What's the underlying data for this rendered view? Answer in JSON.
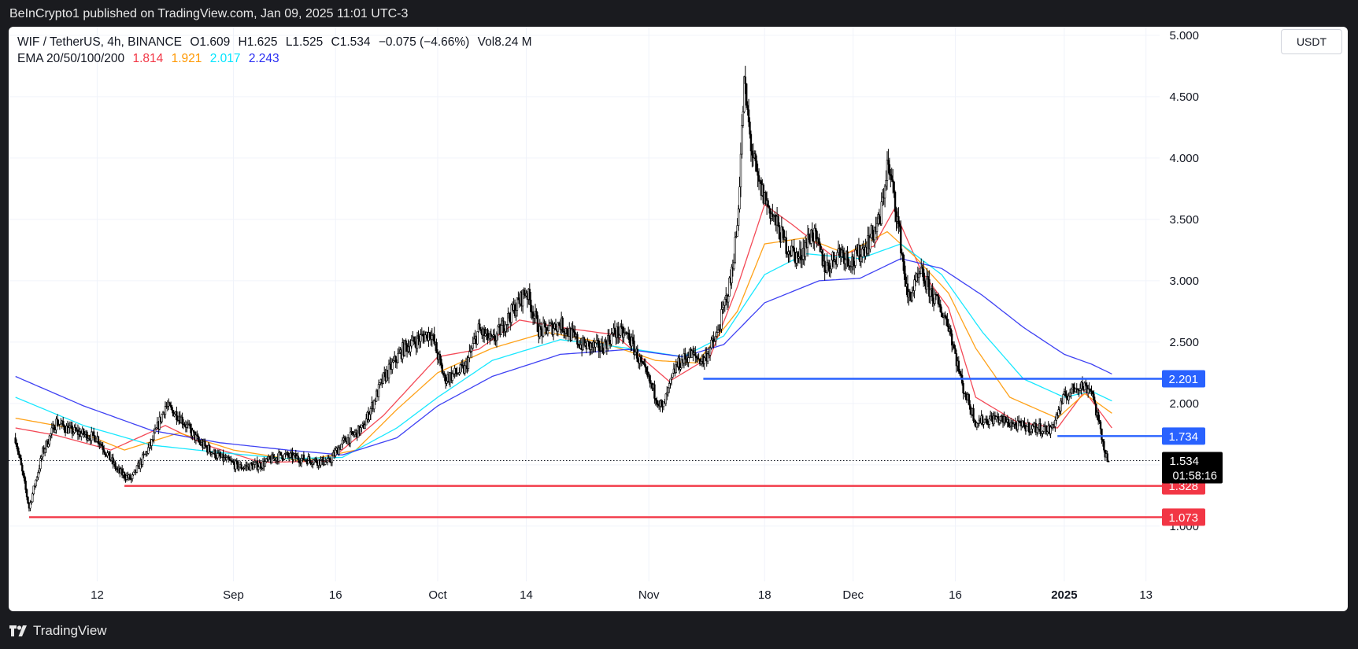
{
  "header": {
    "publisher": "BeInCrypto1 published on TradingView.com, Jan 09, 2025 11:01 UTC-3"
  },
  "legend": {
    "symbol": "WIF / TetherUS, 4h, BINANCE",
    "open": "O1.609",
    "high": "H1.625",
    "low": "L1.525",
    "close": "C1.534",
    "change": "−0.075 (−4.66%)",
    "volume": "Vol8.24 M",
    "ema_label": "EMA 20/50/100/200",
    "ema_values": [
      {
        "value": "1.814",
        "color": "#f23645"
      },
      {
        "value": "1.921",
        "color": "#ff9800"
      },
      {
        "value": "2.017",
        "color": "#00e5ff"
      },
      {
        "value": "2.243",
        "color": "#2a2ef2"
      }
    ]
  },
  "toolbar": {
    "currency": "USDT"
  },
  "footer": {
    "brand": "TradingView"
  },
  "colors": {
    "resistance": "#2962ff",
    "support": "#f23645",
    "price_tag": "#000000",
    "ema20": "#f23645",
    "ema50": "#ff9800",
    "ema100": "#00e5ff",
    "ema200": "#2a2ef2"
  },
  "chart_data": {
    "type": "candlestick",
    "ylim": [
      0.55,
      5.07
    ],
    "y_ticks": [
      "1.000",
      "1.500",
      "2.000",
      "2.500",
      "3.000",
      "3.500",
      "4.000",
      "4.500",
      "5.000"
    ],
    "x_ticks": [
      {
        "label": "12",
        "day": 12,
        "bold": false
      },
      {
        "label": "Sep",
        "day": 32,
        "bold": false
      },
      {
        "label": "16",
        "day": 47,
        "bold": false
      },
      {
        "label": "Oct",
        "day": 62,
        "bold": false
      },
      {
        "label": "14",
        "day": 75,
        "bold": false
      },
      {
        "label": "Nov",
        "day": 93,
        "bold": false
      },
      {
        "label": "18",
        "day": 110,
        "bold": false
      },
      {
        "label": "Dec",
        "day": 123,
        "bold": false
      },
      {
        "label": "16",
        "day": 138,
        "bold": false
      },
      {
        "label": "2025",
        "day": 154,
        "bold": true
      },
      {
        "label": "13",
        "day": 166,
        "bold": false
      }
    ],
    "current_price": {
      "value": 1.534,
      "label": "1.534",
      "countdown": "01:58:16"
    },
    "levels": [
      {
        "value": 2.201,
        "label": "2.201",
        "kind": "resistance",
        "start_day": 101
      },
      {
        "value": 1.734,
        "label": "1.734",
        "kind": "resistance",
        "start_day": 153
      },
      {
        "value": 1.328,
        "label": "1.328",
        "kind": "support",
        "start_day": 16
      },
      {
        "value": 1.073,
        "label": "1.073",
        "kind": "support",
        "start_day": 2
      }
    ],
    "price_path": [
      [
        0,
        1.72
      ],
      [
        2,
        1.15
      ],
      [
        4,
        1.6
      ],
      [
        6,
        1.85
      ],
      [
        8,
        1.78
      ],
      [
        12,
        1.72
      ],
      [
        15,
        1.45
      ],
      [
        17,
        1.38
      ],
      [
        20,
        1.68
      ],
      [
        22,
        1.98
      ],
      [
        24,
        1.9
      ],
      [
        27,
        1.68
      ],
      [
        30,
        1.56
      ],
      [
        33,
        1.48
      ],
      [
        36,
        1.5
      ],
      [
        39,
        1.58
      ],
      [
        42,
        1.55
      ],
      [
        46,
        1.52
      ],
      [
        48,
        1.68
      ],
      [
        51,
        1.8
      ],
      [
        54,
        2.2
      ],
      [
        57,
        2.45
      ],
      [
        60,
        2.55
      ],
      [
        61,
        2.58
      ],
      [
        63,
        2.2
      ],
      [
        66,
        2.28
      ],
      [
        68,
        2.6
      ],
      [
        70,
        2.5
      ],
      [
        73,
        2.75
      ],
      [
        75,
        2.92
      ],
      [
        77,
        2.58
      ],
      [
        80,
        2.65
      ],
      [
        83,
        2.48
      ],
      [
        86,
        2.45
      ],
      [
        88,
        2.58
      ],
      [
        90,
        2.55
      ],
      [
        92,
        2.3
      ],
      [
        95,
        1.95
      ],
      [
        97,
        2.3
      ],
      [
        99,
        2.4
      ],
      [
        101,
        2.35
      ],
      [
        103,
        2.55
      ],
      [
        105,
        3.0
      ],
      [
        106,
        3.45
      ],
      [
        107,
        4.6
      ],
      [
        108,
        4.1
      ],
      [
        109,
        3.8
      ],
      [
        111,
        3.55
      ],
      [
        113,
        3.3
      ],
      [
        115,
        3.18
      ],
      [
        117,
        3.4
      ],
      [
        119,
        3.1
      ],
      [
        121,
        3.25
      ],
      [
        123,
        3.15
      ],
      [
        125,
        3.3
      ],
      [
        127,
        3.5
      ],
      [
        128,
        3.95
      ],
      [
        129,
        3.7
      ],
      [
        130,
        3.3
      ],
      [
        131,
        2.85
      ],
      [
        133,
        3.05
      ],
      [
        135,
        2.85
      ],
      [
        137,
        2.65
      ],
      [
        139,
        2.15
      ],
      [
        141,
        1.85
      ],
      [
        144,
        1.88
      ],
      [
        147,
        1.82
      ],
      [
        150,
        1.8
      ],
      [
        152,
        1.78
      ],
      [
        154,
        2.05
      ],
      [
        156,
        2.15
      ],
      [
        158,
        2.12
      ],
      [
        159,
        1.85
      ],
      [
        160,
        1.6
      ],
      [
        160.5,
        1.534
      ]
    ],
    "ema_series": [
      {
        "name": "EMA 20",
        "color": "#f23645",
        "points": [
          [
            0,
            1.8
          ],
          [
            6,
            1.74
          ],
          [
            14,
            1.62
          ],
          [
            22,
            1.82
          ],
          [
            28,
            1.66
          ],
          [
            36,
            1.52
          ],
          [
            46,
            1.53
          ],
          [
            54,
            1.9
          ],
          [
            62,
            2.38
          ],
          [
            68,
            2.44
          ],
          [
            74,
            2.68
          ],
          [
            80,
            2.62
          ],
          [
            88,
            2.56
          ],
          [
            96,
            2.18
          ],
          [
            102,
            2.38
          ],
          [
            106,
            2.95
          ],
          [
            110,
            3.62
          ],
          [
            114,
            3.46
          ],
          [
            120,
            3.2
          ],
          [
            126,
            3.28
          ],
          [
            129,
            3.58
          ],
          [
            133,
            3.08
          ],
          [
            137,
            2.78
          ],
          [
            141,
            2.05
          ],
          [
            147,
            1.85
          ],
          [
            153,
            1.8
          ],
          [
            157,
            2.1
          ],
          [
            161,
            1.8
          ]
        ]
      },
      {
        "name": "EMA 50",
        "color": "#ff9800",
        "points": [
          [
            0,
            1.88
          ],
          [
            8,
            1.8
          ],
          [
            16,
            1.62
          ],
          [
            24,
            1.76
          ],
          [
            32,
            1.62
          ],
          [
            42,
            1.53
          ],
          [
            50,
            1.62
          ],
          [
            56,
            1.95
          ],
          [
            62,
            2.25
          ],
          [
            70,
            2.45
          ],
          [
            78,
            2.58
          ],
          [
            86,
            2.5
          ],
          [
            94,
            2.35
          ],
          [
            100,
            2.33
          ],
          [
            106,
            2.75
          ],
          [
            110,
            3.3
          ],
          [
            116,
            3.35
          ],
          [
            122,
            3.22
          ],
          [
            128,
            3.4
          ],
          [
            132,
            3.2
          ],
          [
            137,
            2.9
          ],
          [
            141,
            2.45
          ],
          [
            146,
            2.05
          ],
          [
            153,
            1.88
          ],
          [
            157,
            2.08
          ],
          [
            161,
            1.92
          ]
        ]
      },
      {
        "name": "EMA 100",
        "color": "#00e5ff",
        "points": [
          [
            0,
            2.05
          ],
          [
            10,
            1.82
          ],
          [
            20,
            1.66
          ],
          [
            30,
            1.6
          ],
          [
            40,
            1.55
          ],
          [
            48,
            1.56
          ],
          [
            56,
            1.8
          ],
          [
            62,
            2.05
          ],
          [
            70,
            2.35
          ],
          [
            80,
            2.52
          ],
          [
            90,
            2.45
          ],
          [
            98,
            2.38
          ],
          [
            104,
            2.55
          ],
          [
            110,
            3.05
          ],
          [
            116,
            3.22
          ],
          [
            124,
            3.18
          ],
          [
            130,
            3.3
          ],
          [
            136,
            3.05
          ],
          [
            142,
            2.58
          ],
          [
            148,
            2.2
          ],
          [
            154,
            2.05
          ],
          [
            158,
            2.1
          ],
          [
            161,
            2.02
          ]
        ]
      },
      {
        "name": "EMA 200",
        "color": "#2a2ef2",
        "points": [
          [
            0,
            2.22
          ],
          [
            10,
            1.98
          ],
          [
            20,
            1.78
          ],
          [
            30,
            1.68
          ],
          [
            40,
            1.62
          ],
          [
            48,
            1.58
          ],
          [
            56,
            1.72
          ],
          [
            62,
            1.98
          ],
          [
            70,
            2.22
          ],
          [
            80,
            2.4
          ],
          [
            90,
            2.44
          ],
          [
            98,
            2.38
          ],
          [
            104,
            2.48
          ],
          [
            110,
            2.82
          ],
          [
            118,
            3.0
          ],
          [
            124,
            3.02
          ],
          [
            130,
            3.18
          ],
          [
            136,
            3.1
          ],
          [
            142,
            2.88
          ],
          [
            148,
            2.62
          ],
          [
            154,
            2.4
          ],
          [
            158,
            2.32
          ],
          [
            161,
            2.24
          ]
        ]
      }
    ]
  }
}
